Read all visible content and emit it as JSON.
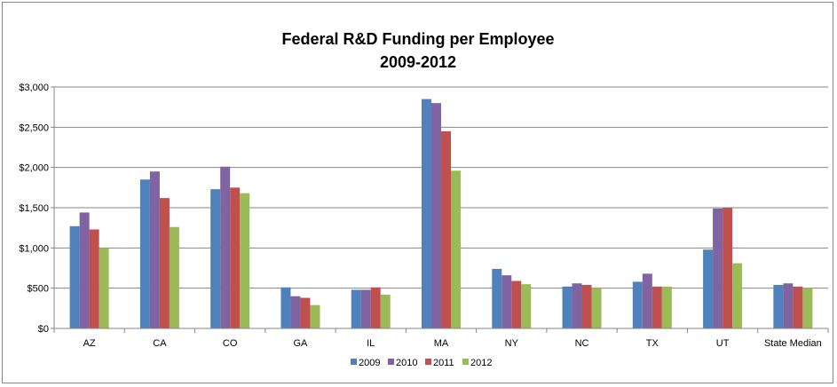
{
  "chart_data": {
    "type": "bar",
    "title": "Federal R&D Funding per Employee",
    "subtitle": "2009-2012",
    "xlabel": "",
    "ylabel": "",
    "categories": [
      "AZ",
      "CA",
      "CO",
      "GA",
      "IL",
      "MA",
      "NY",
      "NC",
      "TX",
      "UT",
      "State Median"
    ],
    "ylim": [
      0,
      3000
    ],
    "yticks": [
      0,
      500,
      1000,
      1500,
      2000,
      2500,
      3000
    ],
    "ytick_labels": [
      "$0",
      "$500",
      "$1,000",
      "$1,500",
      "$2,000",
      "$2,500",
      "$3,000"
    ],
    "grid": true,
    "legend_position": "bottom",
    "series": [
      {
        "name": "2009",
        "color": "#4F81BD",
        "values": [
          1270,
          1850,
          1730,
          510,
          480,
          2850,
          740,
          520,
          580,
          980,
          540
        ]
      },
      {
        "name": "2010",
        "color": "#8064A2",
        "values": [
          1440,
          1950,
          2010,
          400,
          480,
          2800,
          660,
          560,
          680,
          1490,
          560
        ]
      },
      {
        "name": "2011",
        "color": "#C0504D",
        "values": [
          1230,
          1620,
          1750,
          380,
          510,
          2450,
          590,
          540,
          520,
          1500,
          520
        ]
      },
      {
        "name": "2012",
        "color": "#9BBB59",
        "values": [
          1000,
          1260,
          1680,
          290,
          420,
          1960,
          550,
          500,
          520,
          810,
          500
        ]
      }
    ]
  }
}
